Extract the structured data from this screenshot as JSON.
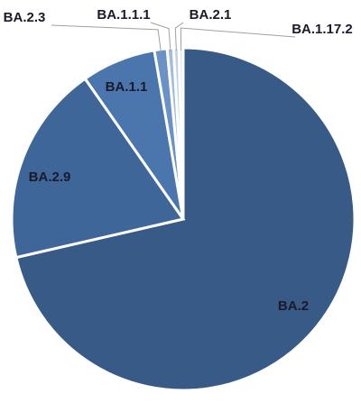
{
  "chart_data": {
    "type": "pie",
    "categories": [
      "BA.2",
      "BA.2.9",
      "BA.1.1",
      "BA.2.3",
      "BA.1.1.1",
      "BA.2.1",
      "BA.1.17.2"
    ],
    "values": [
      71.4,
      18.9,
      7.0,
      1.2,
      0.6,
      0.5,
      0.4
    ],
    "colors": [
      "#375b86",
      "#3f6699",
      "#4a76ad",
      "#6b92c6",
      "#a3bcde",
      "#c3d4ea",
      "#dfe8f4"
    ]
  }
}
